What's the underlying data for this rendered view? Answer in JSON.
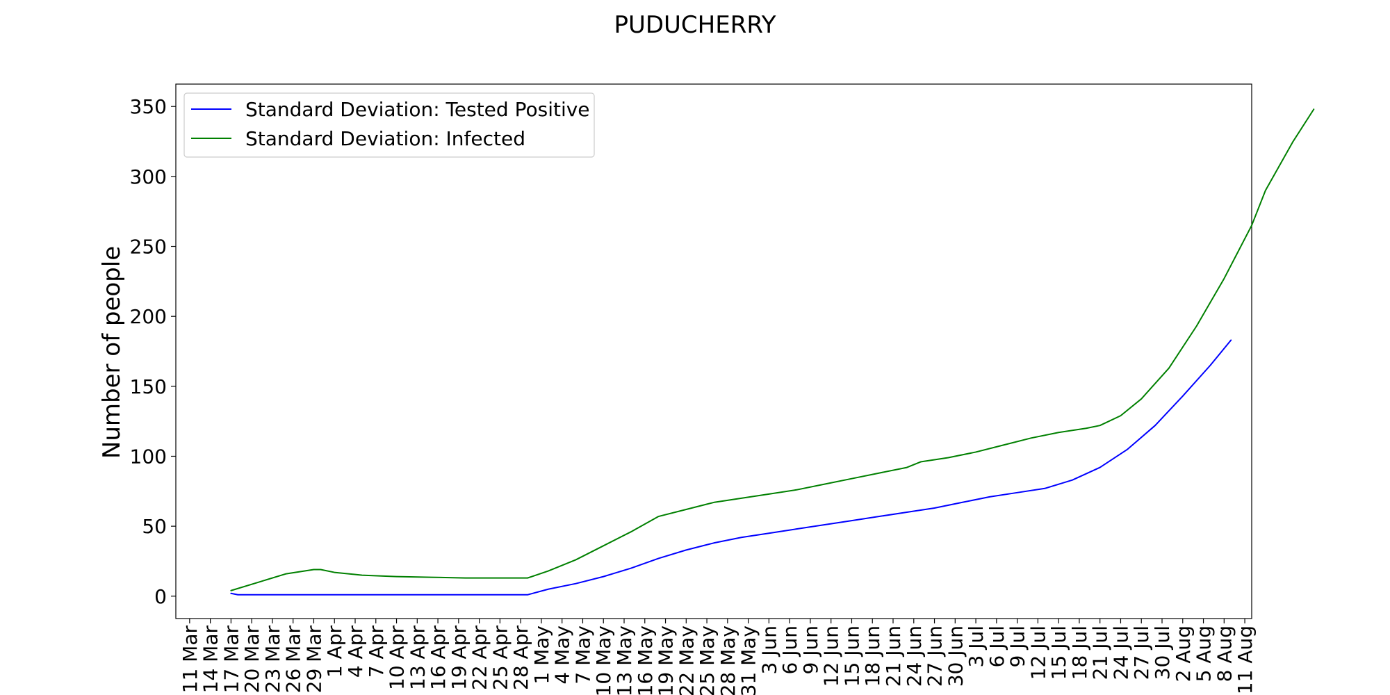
{
  "chart_data": {
    "type": "line",
    "title": "PUDUCHERRY",
    "xlabel": "",
    "ylabel": "Number of people",
    "ylim": [
      -16,
      366
    ],
    "xlim_days": [
      -2,
      154
    ],
    "grid": false,
    "legend_position": "top-left",
    "yticks": [
      0,
      50,
      100,
      150,
      200,
      250,
      300,
      350
    ],
    "xtick_labels": [
      "11 Mar",
      "14 Mar",
      "17 Mar",
      "20 Mar",
      "23 Mar",
      "26 Mar",
      "29 Mar",
      "1 Apr",
      "4 Apr",
      "7 Apr",
      "10 Apr",
      "13 Apr",
      "16 Apr",
      "19 Apr",
      "22 Apr",
      "25 Apr",
      "28 Apr",
      "1 May",
      "4 May",
      "7 May",
      "10 May",
      "13 May",
      "16 May",
      "19 May",
      "22 May",
      "25 May",
      "28 May",
      "31 May",
      "3 Jun",
      "6 Jun",
      "9 Jun",
      "12 Jun",
      "15 Jun",
      "18 Jun",
      "21 Jun",
      "24 Jun",
      "27 Jun",
      "30 Jun",
      "3 Jul",
      "6 Jul",
      "9 Jul",
      "12 Jul",
      "15 Jul",
      "18 Jul",
      "21 Jul",
      "24 Jul",
      "27 Jul",
      "30 Jul",
      "2 Aug",
      "5 Aug",
      "8 Aug",
      "11 Aug"
    ],
    "xtick_step_days": 3,
    "series": [
      {
        "name": "Standard Deviation: Tested Positive",
        "color": "#0000ff",
        "points": [
          [
            6,
            2
          ],
          [
            7,
            1
          ],
          [
            14,
            1
          ],
          [
            21,
            1
          ],
          [
            28,
            1
          ],
          [
            35,
            1
          ],
          [
            42,
            1
          ],
          [
            49,
            1
          ],
          [
            52,
            5
          ],
          [
            56,
            9
          ],
          [
            60,
            14
          ],
          [
            64,
            20
          ],
          [
            68,
            27
          ],
          [
            72,
            33
          ],
          [
            76,
            38
          ],
          [
            80,
            42
          ],
          [
            84,
            45
          ],
          [
            88,
            48
          ],
          [
            92,
            51
          ],
          [
            96,
            54
          ],
          [
            100,
            57
          ],
          [
            104,
            60
          ],
          [
            108,
            63
          ],
          [
            112,
            67
          ],
          [
            116,
            71
          ],
          [
            120,
            74
          ],
          [
            124,
            77
          ],
          [
            128,
            83
          ],
          [
            132,
            92
          ],
          [
            136,
            105
          ],
          [
            140,
            122
          ],
          [
            144,
            143
          ],
          [
            148,
            165
          ],
          [
            151,
            183
          ]
        ]
      },
      {
        "name": "Standard Deviation: Infected",
        "color": "#008000",
        "points": [
          [
            6,
            4
          ],
          [
            10,
            10
          ],
          [
            14,
            16
          ],
          [
            18,
            19
          ],
          [
            19,
            19
          ],
          [
            21,
            17
          ],
          [
            25,
            15
          ],
          [
            30,
            14
          ],
          [
            35,
            13.5
          ],
          [
            40,
            13
          ],
          [
            45,
            13
          ],
          [
            49,
            13
          ],
          [
            52,
            18
          ],
          [
            56,
            26
          ],
          [
            60,
            36
          ],
          [
            64,
            46
          ],
          [
            68,
            57
          ],
          [
            72,
            62
          ],
          [
            76,
            67
          ],
          [
            80,
            70
          ],
          [
            84,
            73
          ],
          [
            88,
            76
          ],
          [
            92,
            80
          ],
          [
            96,
            84
          ],
          [
            100,
            88
          ],
          [
            104,
            92
          ],
          [
            106,
            96
          ],
          [
            110,
            99
          ],
          [
            114,
            103
          ],
          [
            118,
            108
          ],
          [
            122,
            113
          ],
          [
            126,
            117
          ],
          [
            130,
            120
          ],
          [
            132,
            122
          ],
          [
            135,
            129
          ],
          [
            138,
            141
          ],
          [
            142,
            163
          ],
          [
            146,
            193
          ],
          [
            150,
            227
          ],
          [
            154,
            265
          ],
          [
            156,
            290
          ],
          [
            160,
            325
          ],
          [
            163,
            348
          ]
        ]
      }
    ]
  }
}
